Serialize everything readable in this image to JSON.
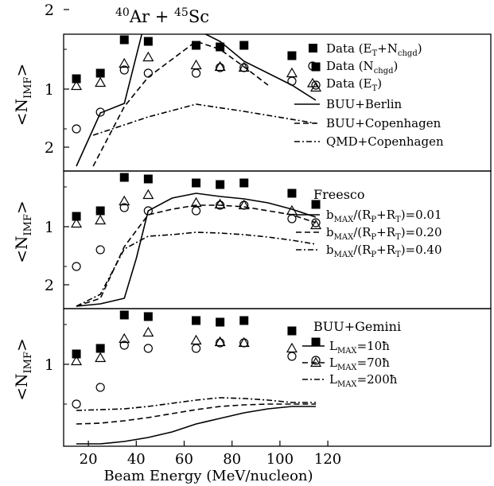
{
  "chart_data": [
    {
      "type": "scatter",
      "title": "40Ar + 45Sc",
      "title_parts": {
        "mass_a": "40",
        "elem_a": "Ar",
        "plus": "+",
        "mass_b": "45",
        "elem_b": "Sc"
      },
      "ylabel": "<N_IMF>",
      "ylim": [
        0,
        2.3
      ],
      "xlim": [
        10,
        120
      ],
      "yticks": [
        "1",
        "2"
      ],
      "legend_position": "top-right",
      "series": [
        {
          "name": "Data (E_T+N_chgd)",
          "marker": "filled-square",
          "x": [
            15,
            25,
            35,
            45,
            65,
            75,
            85,
            105,
            115
          ],
          "y": [
            1.13,
            1.2,
            1.62,
            1.6,
            1.55,
            1.53,
            1.55,
            1.42,
            1.28
          ]
        },
        {
          "name": "Data (N_chgd)",
          "marker": "open-circle",
          "x": [
            15,
            25,
            35,
            45,
            65,
            75,
            85,
            105,
            115
          ],
          "y": [
            0.5,
            0.71,
            1.24,
            1.2,
            1.2,
            1.27,
            1.27,
            1.1,
            1.05
          ]
        },
        {
          "name": "Data (E_T)",
          "marker": "open-triangle",
          "x": [
            15,
            25,
            35,
            45,
            65,
            75,
            85,
            105,
            115
          ],
          "y": [
            1.04,
            1.08,
            1.32,
            1.4,
            1.3,
            1.28,
            1.27,
            1.2,
            1.02
          ]
        },
        {
          "name": "BUU+Berlin",
          "line": "solid",
          "x": [
            15,
            25,
            35,
            45,
            65,
            75,
            85,
            105,
            115
          ],
          "y": [
            0.03,
            0.7,
            0.82,
            2.01,
            1.75,
            1.6,
            1.35,
            1.05,
            0.86
          ]
        },
        {
          "name": "BUU+Copenhagen",
          "line": "dashed",
          "x": [
            22,
            35,
            45,
            65,
            75,
            85,
            95
          ],
          "y": [
            0.03,
            0.78,
            1.15,
            1.6,
            1.5,
            1.28,
            1.05
          ]
        },
        {
          "name": "QMD+Copenhagen",
          "line": "dash-dot",
          "x": [
            22,
            35,
            45,
            65,
            85,
            115
          ],
          "y": [
            0.42,
            0.55,
            0.65,
            0.81,
            0.72,
            0.57
          ]
        }
      ]
    },
    {
      "type": "scatter",
      "ylabel": "<N_IMF>",
      "ylim": [
        0,
        2.3
      ],
      "xlim": [
        10,
        120
      ],
      "yticks": [
        "1",
        "2"
      ],
      "legend_title": "Freesco",
      "legend_position": "top-right",
      "series": [
        {
          "marker": "filled-square",
          "x": [
            15,
            25,
            35,
            45,
            65,
            75,
            85,
            105,
            115
          ],
          "y": [
            1.13,
            1.2,
            1.62,
            1.6,
            1.55,
            1.53,
            1.55,
            1.42,
            1.28
          ]
        },
        {
          "marker": "open-circle",
          "x": [
            15,
            25,
            35,
            45,
            65,
            75,
            85,
            105,
            115
          ],
          "y": [
            0.5,
            0.71,
            1.24,
            1.2,
            1.2,
            1.27,
            1.27,
            1.1,
            1.05
          ]
        },
        {
          "marker": "open-triangle",
          "x": [
            15,
            25,
            35,
            45,
            65,
            75,
            85,
            105,
            115
          ],
          "y": [
            1.04,
            1.08,
            1.32,
            1.4,
            1.3,
            1.28,
            1.27,
            1.2,
            1.02
          ]
        },
        {
          "name": "b_MAX/(R_P+R_T)=0.01",
          "line": "solid",
          "x": [
            15,
            25,
            35,
            40,
            45,
            55,
            65,
            75,
            85,
            95,
            105,
            115
          ],
          "y": [
            0.0,
            0.03,
            0.1,
            0.6,
            1.2,
            1.36,
            1.42,
            1.38,
            1.35,
            1.3,
            1.22,
            1.12
          ]
        },
        {
          "name": "b_MAX/(R_P+R_T)=0.20",
          "line": "dashed",
          "x": [
            15,
            25,
            35,
            45,
            55,
            65,
            75,
            85,
            95,
            105,
            115
          ],
          "y": [
            0.0,
            0.1,
            0.75,
            1.15,
            1.22,
            1.27,
            1.27,
            1.25,
            1.2,
            1.15,
            1.05
          ]
        },
        {
          "name": "b_MAX/(R_P+R_T)=0.40",
          "line": "dash-dot",
          "x": [
            15,
            25,
            35,
            45,
            55,
            65,
            75,
            85,
            95,
            105,
            115
          ],
          "y": [
            0.0,
            0.15,
            0.72,
            0.88,
            0.9,
            0.93,
            0.92,
            0.9,
            0.87,
            0.83,
            0.78
          ]
        }
      ]
    },
    {
      "type": "scatter",
      "ylabel": "<N_IMF>",
      "xlabel": "Beam Energy (MeV/nucleon)",
      "ylim": [
        0,
        2.3
      ],
      "xlim": [
        10,
        120
      ],
      "yticks": [
        "1",
        "2"
      ],
      "xticks": [
        "20",
        "40",
        "60",
        "80",
        "100",
        "120"
      ],
      "legend_title": "BUU+Gemini",
      "legend_position": "top-right",
      "series": [
        {
          "marker": "filled-square",
          "x": [
            15,
            25,
            35,
            45,
            65,
            75,
            85,
            105,
            115
          ],
          "y": [
            1.13,
            1.2,
            1.62,
            1.6,
            1.55,
            1.53,
            1.55,
            1.42,
            1.28
          ]
        },
        {
          "marker": "open-circle",
          "x": [
            15,
            25,
            35,
            45,
            65,
            75,
            85,
            105,
            115
          ],
          "y": [
            0.5,
            0.71,
            1.24,
            1.2,
            1.2,
            1.27,
            1.27,
            1.1,
            1.05
          ]
        },
        {
          "marker": "open-triangle",
          "x": [
            15,
            25,
            35,
            45,
            65,
            75,
            85,
            105,
            115
          ],
          "y": [
            1.04,
            1.08,
            1.32,
            1.4,
            1.3,
            1.28,
            1.27,
            1.2,
            1.02
          ]
        },
        {
          "name": "L_MAX=10ħ",
          "line": "solid",
          "x": [
            15,
            25,
            35,
            45,
            55,
            65,
            75,
            85,
            95,
            105,
            115
          ],
          "y": [
            0.0,
            0.0,
            0.03,
            0.08,
            0.15,
            0.25,
            0.32,
            0.39,
            0.44,
            0.47,
            0.47
          ]
        },
        {
          "name": "L_MAX=70ħ",
          "line": "dashed",
          "x": [
            15,
            25,
            35,
            45,
            55,
            65,
            75,
            85,
            95,
            105,
            115
          ],
          "y": [
            0.25,
            0.26,
            0.29,
            0.33,
            0.38,
            0.43,
            0.47,
            0.49,
            0.5,
            0.5,
            0.5
          ]
        },
        {
          "name": "L_MAX=200ħ",
          "line": "dash-dot",
          "x": [
            15,
            25,
            35,
            45,
            55,
            65,
            75,
            85,
            95,
            105,
            115
          ],
          "y": [
            0.42,
            0.43,
            0.44,
            0.47,
            0.51,
            0.55,
            0.58,
            0.57,
            0.55,
            0.52,
            0.52
          ]
        }
      ]
    }
  ]
}
